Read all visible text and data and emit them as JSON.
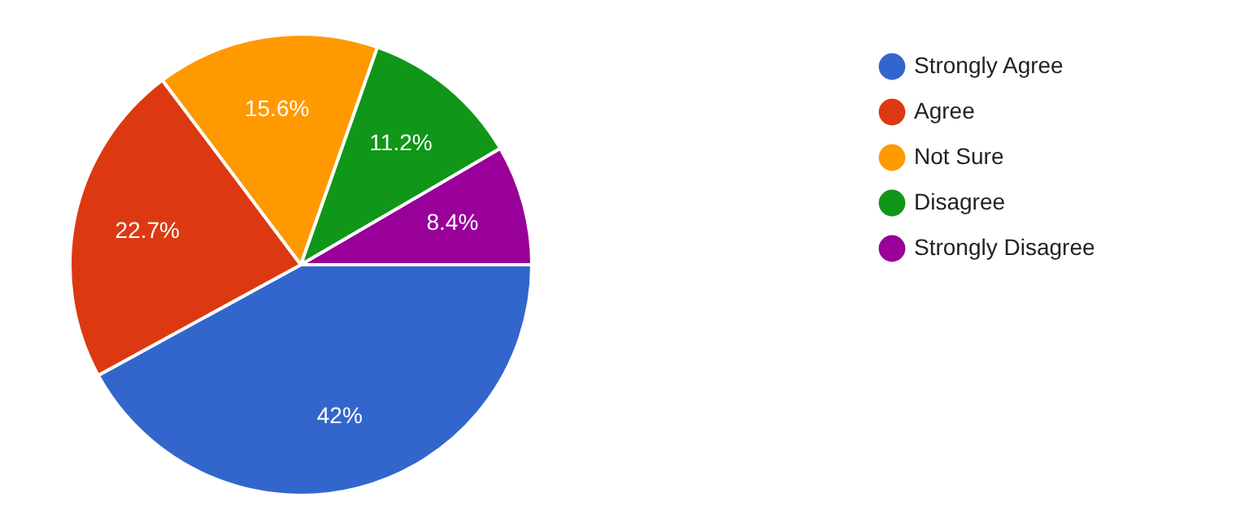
{
  "chart_data": {
    "type": "pie",
    "categories": [
      "Strongly Agree",
      "Agree",
      "Not Sure",
      "Disagree",
      "Strongly Disagree"
    ],
    "values": [
      42,
      22.7,
      15.6,
      11.2,
      8.4
    ],
    "colors": [
      "#3366cc",
      "#dc3912",
      "#ff9900",
      "#109618",
      "#990099"
    ],
    "value_labels": [
      "42%",
      "22.7%",
      "15.6%",
      "11.2%",
      "8.4%"
    ],
    "legend": "right"
  }
}
